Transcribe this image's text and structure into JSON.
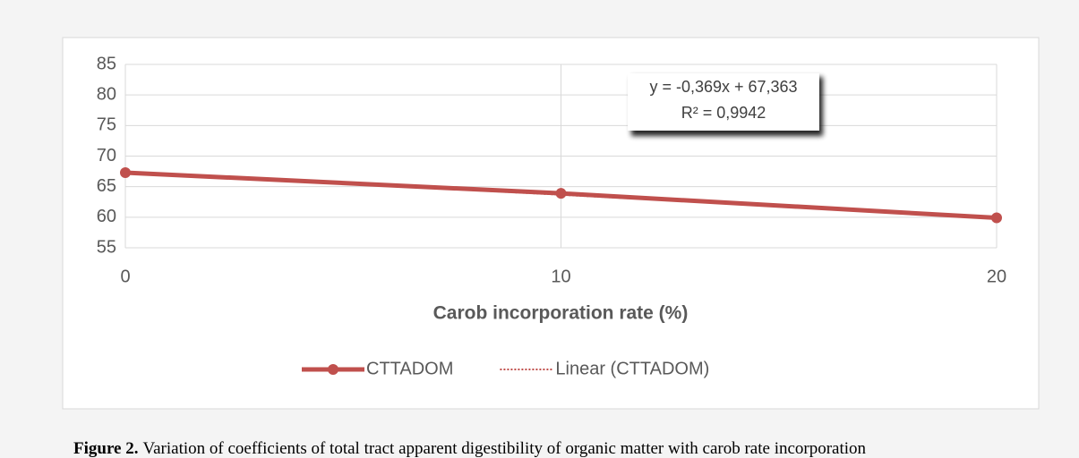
{
  "chart_data": {
    "type": "line",
    "x": [
      0,
      10,
      20
    ],
    "xlim": [
      0,
      20
    ],
    "xticks": [
      0,
      10,
      20
    ],
    "ylim": [
      55,
      85
    ],
    "yticks": [
      55,
      60,
      65,
      70,
      75,
      80,
      85
    ],
    "x_label": "Carob incorporation rate (%)",
    "grid": true,
    "legend": "bottom",
    "series": [
      {
        "name": "CTTADOM",
        "color": "#c0504d",
        "style": "solid",
        "markers": true,
        "values": [
          67.3,
          63.9,
          59.9
        ]
      },
      {
        "name": "Linear (CTTADOM)",
        "color": "#c0504d",
        "style": "dotted",
        "markers": false,
        "values": [
          67.363,
          63.673,
          59.983
        ]
      }
    ],
    "annotations": [
      "y = -0,369x + 67,363",
      "R² = 0,9942"
    ]
  },
  "caption": {
    "label": "Figure 2.",
    "text": "Variation of coefficients of total tract apparent digestibility of organic matter with carob rate incorporation"
  }
}
